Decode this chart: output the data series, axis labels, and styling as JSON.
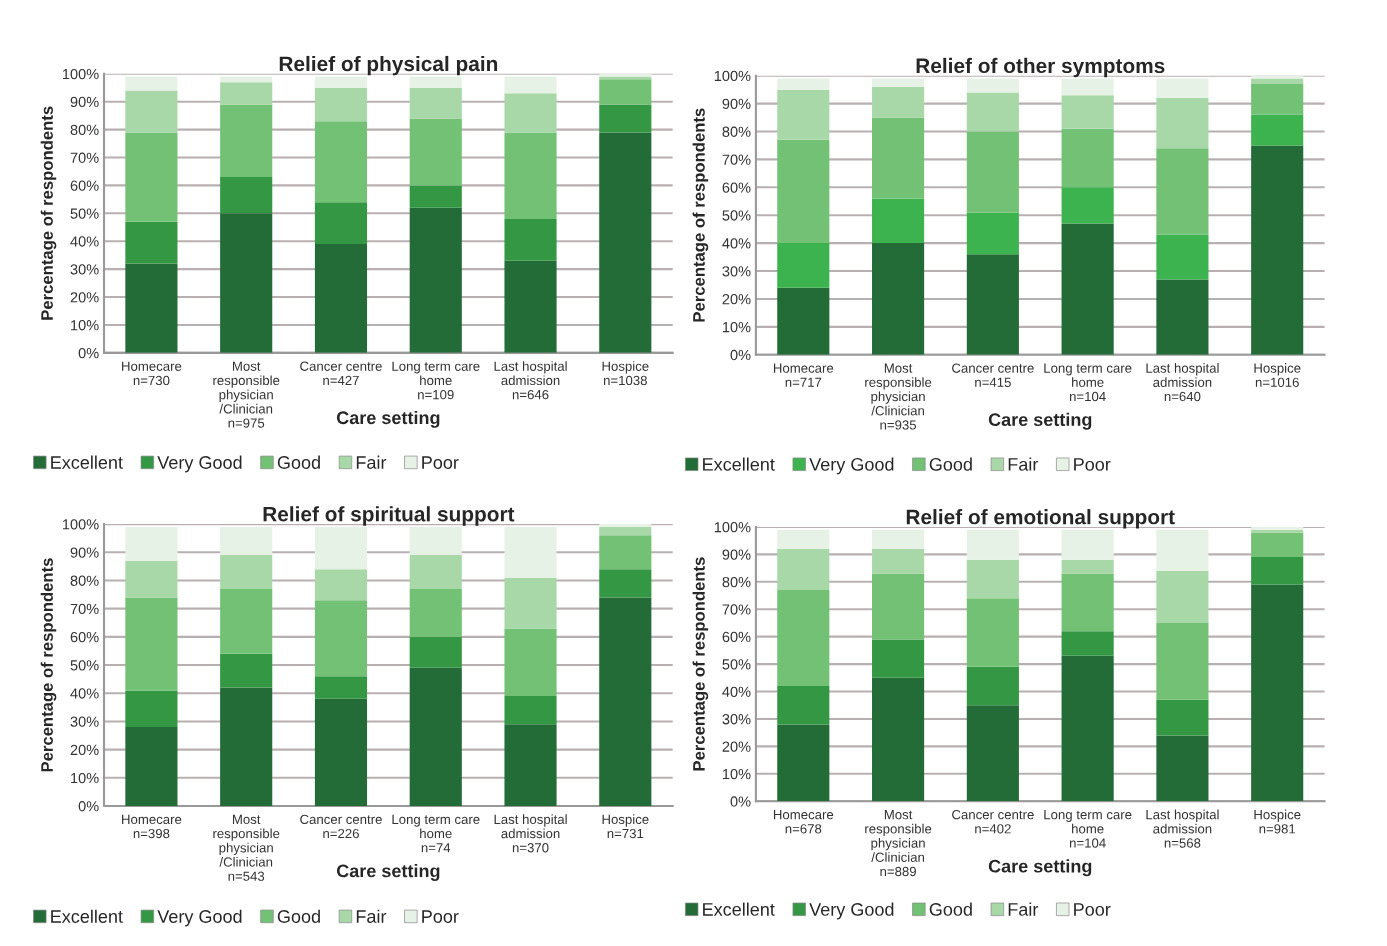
{
  "chart_data": [
    {
      "type": "bar",
      "stacked": true,
      "title": "Relief of physical pain",
      "xlabel": "Care setting",
      "ylabel": "Percentage of respondents",
      "categories": [
        "Homecare\nn=730",
        "Most\nresponsible\nphysician\n/Clinician\nn=975",
        "Cancer centre\nn=427",
        "Long term care\nhome\nn=109",
        "Last hospital\nadmission\nn=646",
        "Hospice\nn=1038"
      ],
      "series": [
        {
          "name": "Excellent",
          "color": "#236b37",
          "values": [
            32,
            50,
            39,
            52,
            33,
            79
          ]
        },
        {
          "name": "Very Good",
          "color": "#339744",
          "values": [
            15,
            13,
            15,
            8,
            15,
            10
          ]
        },
        {
          "name": "Good",
          "color": "#72c174",
          "values": [
            32,
            26,
            29,
            24,
            31,
            9
          ]
        },
        {
          "name": "Fair",
          "color": "#a9d8a8",
          "values": [
            15,
            8,
            12,
            11,
            14,
            1
          ]
        },
        {
          "name": "Poor",
          "color": "#e6f2e5",
          "values": [
            5,
            2,
            4,
            4,
            6,
            1
          ]
        }
      ],
      "ylim": [
        0,
        100
      ],
      "yticks": [
        {
          "value": 0,
          "label": "0%"
        },
        {
          "value": 10,
          "label": "10%"
        },
        {
          "value": 20,
          "label": "20%"
        },
        {
          "value": 30,
          "label": "30%"
        },
        {
          "value": 40,
          "label": "40%"
        },
        {
          "value": 50,
          "label": "50%"
        },
        {
          "value": 60,
          "label": "60%"
        },
        {
          "value": 70,
          "label": "70%"
        },
        {
          "value": 80,
          "label": "80%"
        },
        {
          "value": 90,
          "label": "90%"
        },
        {
          "value": 100,
          "label": "100%"
        }
      ],
      "grid": "y",
      "legend": "bottom"
    },
    {
      "type": "bar",
      "stacked": true,
      "title": "Relief of other symptoms",
      "xlabel": "Care setting",
      "ylabel": "Percentage of respondents",
      "categories": [
        "Homecare\nn=717",
        "Most\nresponsible\nphysician\n/Clinician\nn=935",
        "Cancer centre\nn=415",
        "Long term care\nhome\nn=104",
        "Last hospital\nadmission\nn=640",
        "Hospice\nn=1016"
      ],
      "series": [
        {
          "name": "Excellent",
          "color": "#236b37",
          "values": [
            24,
            40,
            36,
            47,
            27,
            75
          ]
        },
        {
          "name": "Very Good",
          "color": "#3db34f",
          "values": [
            16,
            16,
            15,
            13,
            16,
            11
          ]
        },
        {
          "name": "Good",
          "color": "#72c174",
          "values": [
            37,
            29,
            29,
            21,
            31,
            11
          ]
        },
        {
          "name": "Fair",
          "color": "#a9d8a8",
          "values": [
            18,
            11,
            14,
            12,
            18,
            2
          ]
        },
        {
          "name": "Poor",
          "color": "#e6f2e5",
          "values": [
            4,
            3,
            5,
            6,
            7,
            1
          ]
        }
      ],
      "ylim": [
        0,
        100
      ],
      "yticks": [
        {
          "value": 0,
          "label": "0%"
        },
        {
          "value": 10,
          "label": "10%"
        },
        {
          "value": 20,
          "label": "20%"
        },
        {
          "value": 30,
          "label": "30%"
        },
        {
          "value": 40,
          "label": "40%"
        },
        {
          "value": 50,
          "label": "50%"
        },
        {
          "value": 60,
          "label": "60%"
        },
        {
          "value": 70,
          "label": "70%"
        },
        {
          "value": 80,
          "label": "80%"
        },
        {
          "value": 90,
          "label": "90%"
        },
        {
          "value": 100,
          "label": "100%"
        }
      ],
      "grid": "y",
      "legend": "bottom"
    },
    {
      "type": "bar",
      "stacked": true,
      "title": "Relief of spiritual support",
      "xlabel": "Care setting",
      "ylabel": "Percentage of respondents",
      "categories": [
        "Homecare\nn=398",
        "Most\nresponsible\nphysician\n/Clinician\nn=543",
        "Cancer centre\nn=226",
        "Long term care\nhome\nn=74",
        "Last hospital\nadmission\nn=370",
        "Hospice\nn=731"
      ],
      "series": [
        {
          "name": "Excellent",
          "color": "#236b37",
          "values": [
            28,
            42,
            38,
            49,
            29,
            74
          ]
        },
        {
          "name": "Very Good",
          "color": "#339744",
          "values": [
            13,
            12,
            8,
            11,
            10,
            10
          ]
        },
        {
          "name": "Good",
          "color": "#72c174",
          "values": [
            33,
            23,
            27,
            17,
            24,
            12
          ]
        },
        {
          "name": "Fair",
          "color": "#a9d8a8",
          "values": [
            13,
            12,
            11,
            12,
            18,
            3
          ]
        },
        {
          "name": "Poor",
          "color": "#e6f2e5",
          "values": [
            12,
            10,
            15,
            10,
            18,
            1
          ]
        }
      ],
      "ylim": [
        0,
        100
      ],
      "yticks": [
        {
          "value": 0,
          "label": "0%"
        },
        {
          "value": 10,
          "label": "10%"
        },
        {
          "value": 20,
          "label": "20%"
        },
        {
          "value": 30,
          "label": "30%"
        },
        {
          "value": 40,
          "label": "40%"
        },
        {
          "value": 50,
          "label": "50%"
        },
        {
          "value": 60,
          "label": "60%"
        },
        {
          "value": 70,
          "label": "70%"
        },
        {
          "value": 80,
          "label": "80%"
        },
        {
          "value": 90,
          "label": "90%"
        },
        {
          "value": 100,
          "label": "100%"
        }
      ],
      "grid": "y",
      "legend": "bottom"
    },
    {
      "type": "bar",
      "stacked": true,
      "title": "Relief of emotional support",
      "xlabel": "Care setting",
      "ylabel": "Percentage of respondents",
      "categories": [
        "Homecare\nn=678",
        "Most\nresponsible\nphysician\n/Clinician\nn=889",
        "Cancer centre\nn=402",
        "Long term care\nhome\nn=104",
        "Last hospital\nadmission\nn=568",
        "Hospice\nn=981"
      ],
      "series": [
        {
          "name": "Excellent",
          "color": "#236b37",
          "values": [
            28,
            45,
            35,
            53,
            24,
            79
          ]
        },
        {
          "name": "Very Good",
          "color": "#339744",
          "values": [
            14,
            14,
            14,
            9,
            13,
            10
          ]
        },
        {
          "name": "Good",
          "color": "#72c174",
          "values": [
            35,
            24,
            25,
            21,
            28,
            9
          ]
        },
        {
          "name": "Fair",
          "color": "#a9d8a8",
          "values": [
            15,
            9,
            14,
            5,
            19,
            1
          ]
        },
        {
          "name": "Poor",
          "color": "#e6f2e5",
          "values": [
            7,
            7,
            11,
            11,
            15,
            1
          ]
        }
      ],
      "ylim": [
        0,
        100
      ],
      "yticks": [
        {
          "value": 0,
          "label": "0%"
        },
        {
          "value": 10,
          "label": "10%"
        },
        {
          "value": 20,
          "label": "20%"
        },
        {
          "value": 30,
          "label": "30%"
        },
        {
          "value": 40,
          "label": "40%"
        },
        {
          "value": 50,
          "label": "50%"
        },
        {
          "value": 60,
          "label": "60%"
        },
        {
          "value": 70,
          "label": "70%"
        },
        {
          "value": 80,
          "label": "80%"
        },
        {
          "value": 90,
          "label": "90%"
        },
        {
          "value": 100,
          "label": "100%"
        }
      ],
      "grid": "y",
      "legend": "bottom"
    }
  ]
}
